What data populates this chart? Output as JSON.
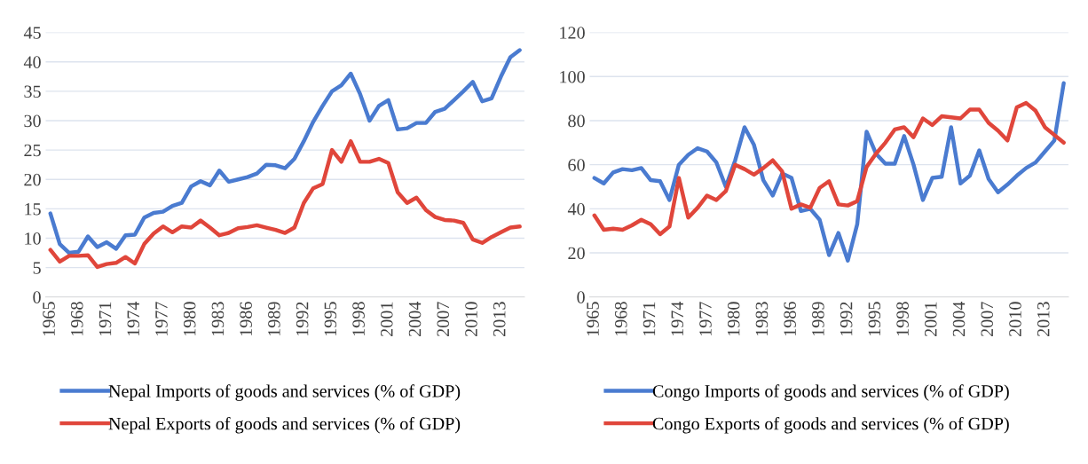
{
  "chart_data": [
    {
      "type": "line",
      "categories": [
        "1965",
        null,
        null,
        "1968",
        null,
        null,
        "1971",
        null,
        null,
        "1974",
        null,
        null,
        "1977",
        null,
        null,
        "1980",
        null,
        null,
        "1983",
        null,
        null,
        "1986",
        null,
        null,
        "1989",
        null,
        null,
        "1992",
        null,
        null,
        "1995",
        null,
        null,
        "1998",
        null,
        null,
        "2001",
        null,
        null,
        "2004",
        null,
        null,
        "2007",
        null,
        null,
        "2010",
        null,
        null,
        "2013",
        null,
        null
      ],
      "ylim": [
        0,
        45
      ],
      "yticks": [
        0,
        5,
        10,
        15,
        20,
        25,
        30,
        35,
        40,
        45
      ],
      "grid": "y",
      "legend": "bottom",
      "marker": "none",
      "line_style": "solid",
      "series": [
        {
          "name": "Nepal Imports of goods and services (% of GDP)",
          "color": "#4a7bd0",
          "values": [
            14.2,
            9,
            7.5,
            7.7,
            10.3,
            8.5,
            9.3,
            8.2,
            10.5,
            10.6,
            13.5,
            14.3,
            14.5,
            15.5,
            16,
            18.8,
            19.7,
            19,
            21.5,
            19.6,
            20,
            20.4,
            21,
            22.5,
            22.4,
            21.9,
            23.5,
            26.5,
            29.8,
            32.5,
            35,
            36,
            38,
            34.5,
            30,
            32.5,
            33.5,
            28.5,
            28.7,
            29.6,
            29.6,
            31.5,
            32,
            33.5,
            35,
            36.6,
            33.3,
            33.8,
            37.5,
            40.8,
            42
          ]
        },
        {
          "name": "Nepal Exports of goods and services (% of GDP)",
          "color": "#e0463b",
          "values": [
            8,
            6,
            7,
            7,
            7.1,
            5.1,
            5.6,
            5.8,
            6.8,
            5.7,
            9,
            10.8,
            12,
            11,
            12,
            11.8,
            13,
            11.8,
            10.5,
            10.9,
            11.7,
            11.9,
            12.2,
            11.8,
            11.4,
            10.9,
            11.8,
            16,
            18.5,
            19.2,
            25,
            23,
            26.5,
            23,
            23,
            23.5,
            22.8,
            17.8,
            16,
            16.9,
            14.8,
            13.6,
            13.1,
            13,
            12.6,
            9.8,
            9.2,
            10.2,
            11,
            11.8,
            12
          ]
        }
      ]
    },
    {
      "type": "line",
      "categories": [
        "1965",
        null,
        null,
        "1968",
        null,
        null,
        "1971",
        null,
        null,
        "1974",
        null,
        null,
        "1977",
        null,
        null,
        "1980",
        null,
        null,
        "1983",
        null,
        null,
        "1986",
        null,
        null,
        "1989",
        null,
        null,
        "1992",
        null,
        null,
        "1995",
        null,
        null,
        "1998",
        null,
        null,
        "2001",
        null,
        null,
        "2004",
        null,
        null,
        "2007",
        null,
        null,
        "2010",
        null,
        null,
        "2013",
        null,
        null
      ],
      "ylim": [
        0,
        120
      ],
      "yticks": [
        0,
        20,
        40,
        60,
        80,
        100,
        120
      ],
      "grid": "y",
      "legend": "bottom",
      "marker": "none",
      "line_style": "solid",
      "series": [
        {
          "name": "Congo Imports of goods and services (% of GDP)",
          "color": "#4a7bd0",
          "values": [
            54,
            51.5,
            56.5,
            58,
            57.5,
            58.5,
            53,
            52.5,
            44,
            60,
            64.5,
            67.5,
            66,
            61,
            50,
            62,
            77,
            69,
            53,
            46,
            56,
            54,
            39,
            40,
            35,
            19,
            29,
            16.5,
            33,
            75,
            65,
            60.5,
            60.5,
            73,
            60,
            44,
            54,
            54.5,
            77,
            51.5,
            55,
            66.5,
            53.5,
            47.5,
            51,
            55,
            58.5,
            61,
            66,
            71,
            97
          ]
        },
        {
          "name": "Congo Exports of goods and services (% of GDP)",
          "color": "#e0463b",
          "values": [
            37,
            30.5,
            31,
            30.5,
            32.5,
            35,
            33,
            28.5,
            32,
            54,
            36,
            40.5,
            46,
            44,
            48,
            60,
            58,
            55.5,
            58.5,
            62,
            57,
            40,
            42,
            40.5,
            49.5,
            52.5,
            42,
            41.5,
            43.5,
            59,
            65,
            70,
            76,
            77,
            72.5,
            81,
            78,
            82,
            81.5,
            81,
            85,
            85,
            79,
            75.5,
            71,
            86,
            88,
            84.5,
            77,
            73.5,
            70
          ]
        }
      ]
    }
  ]
}
